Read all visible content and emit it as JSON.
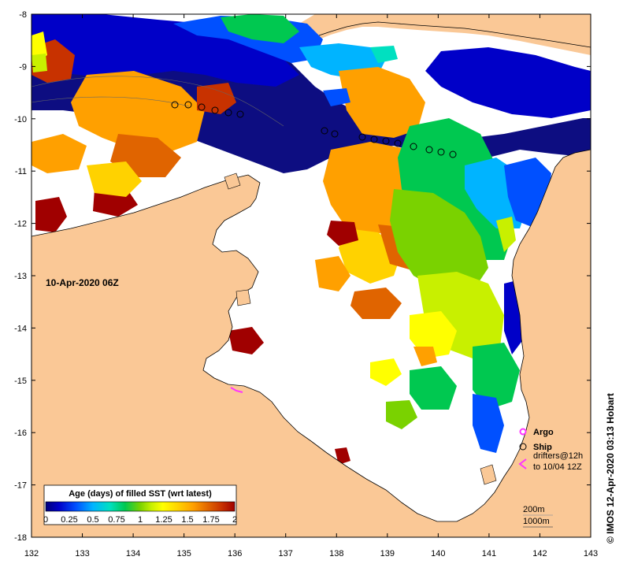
{
  "map": {
    "timestamp": "10-Apr-2020 06Z",
    "credit": "©  IMOS 12-Apr-2020 03:13 Hobart",
    "lon_ticks": [
      "132",
      "133",
      "134",
      "135",
      "136",
      "137",
      "138",
      "139",
      "140",
      "141",
      "142",
      "143"
    ],
    "lat_ticks": [
      "-8",
      "-9",
      "-10",
      "-11",
      "-12",
      "-13",
      "-14",
      "-15",
      "-16",
      "-17",
      "-18"
    ],
    "colorbar": {
      "title": "Age (days) of filled SST (wrt latest)",
      "tick_labels": [
        "0",
        "0.25",
        "0.5",
        "0.75",
        "1",
        "1.25",
        "1.5",
        "1.75",
        "2"
      ],
      "colors": [
        "#00007a",
        "#0000c8",
        "#0050ff",
        "#00b4ff",
        "#00e0c0",
        "#00c850",
        "#7ad200",
        "#c8f000",
        "#ffff00",
        "#ffd200",
        "#ffa000",
        "#e06400",
        "#c83200",
        "#a00000"
      ]
    },
    "legend": {
      "argo_label": "Argo",
      "ship_label": "Ship",
      "drifters_line1": "drifters@12h",
      "drifters_line2": "to 10/04 12Z",
      "depth_200": "200m",
      "depth_1000": "1000m"
    },
    "colors": {
      "land": "#fac896",
      "no_data": "#ffffff",
      "argo": "#ff33ff",
      "drifter": "#ff33ff"
    }
  }
}
